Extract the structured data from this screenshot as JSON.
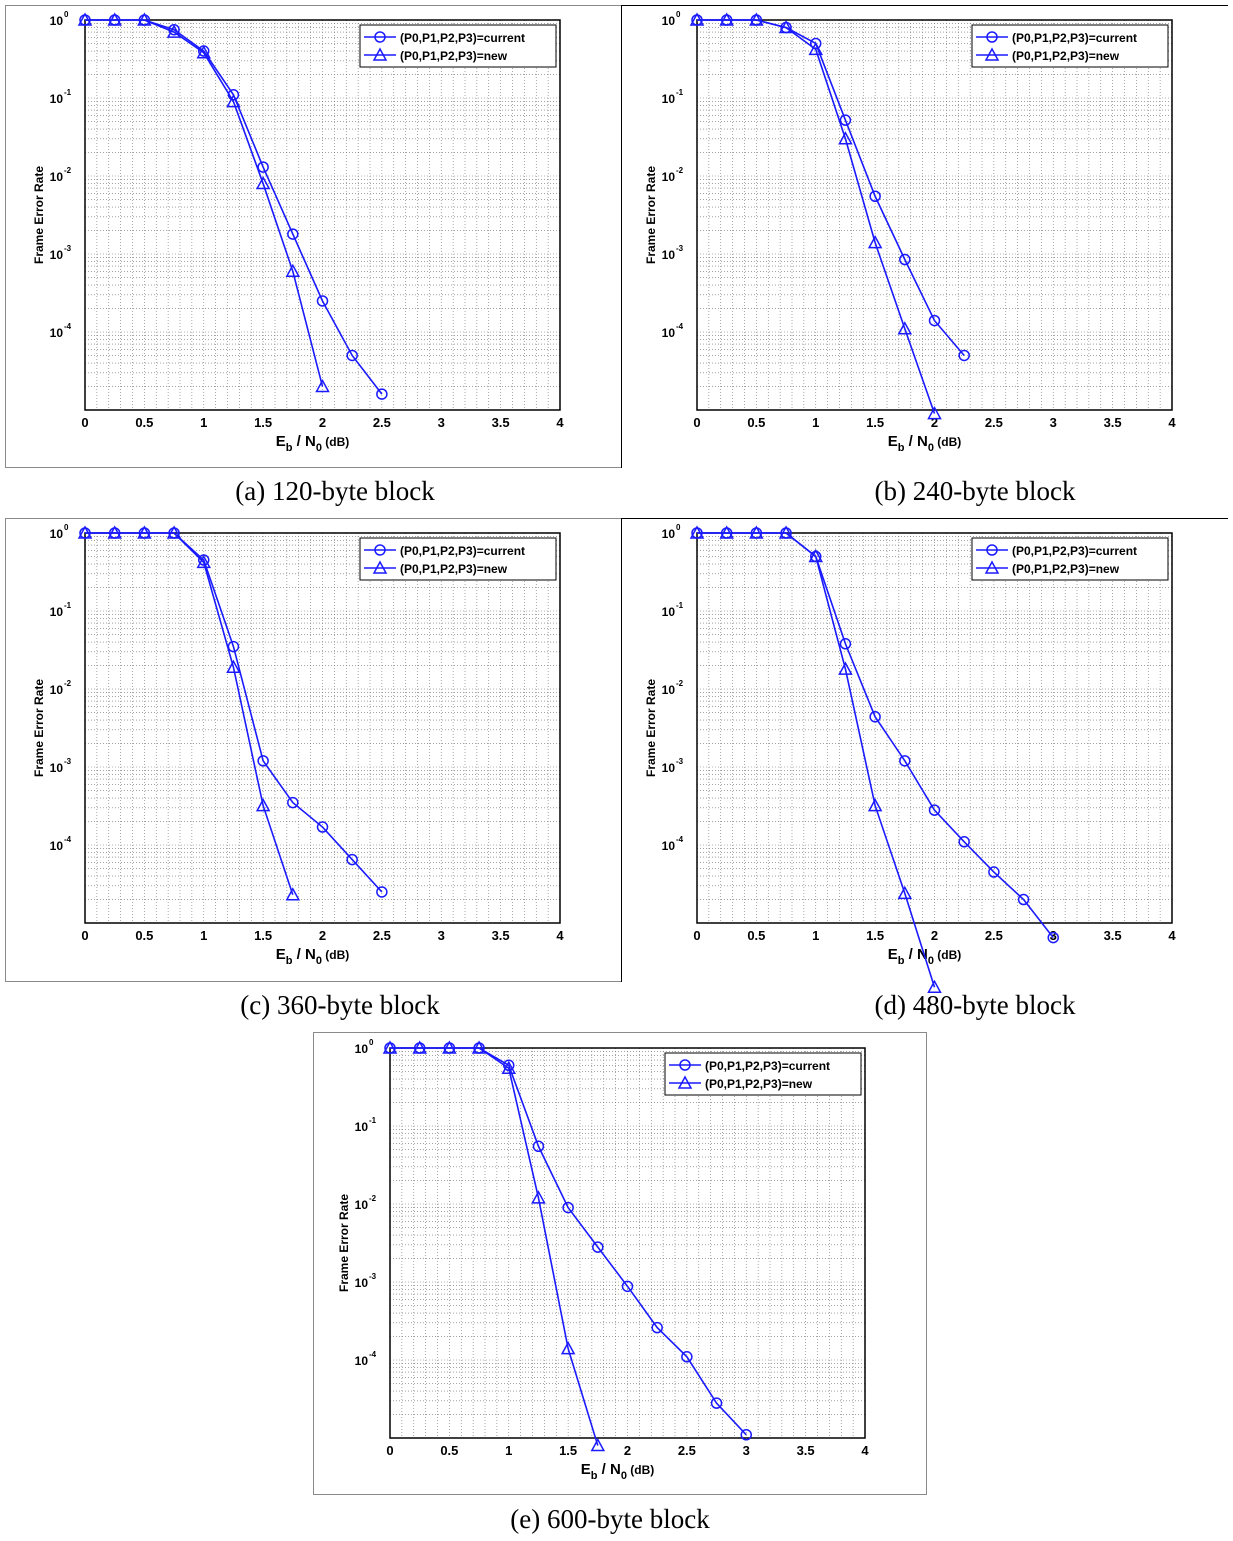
{
  "figure": {
    "series_color": "#1a1aff",
    "marker_current": "circle",
    "marker_new": "triangle"
  },
  "captions": [
    "(a) 120-byte block",
    "(b) 240-byte block",
    "(c) 360-byte block",
    "(d) 480-byte block",
    "(e) 600-byte block"
  ],
  "chart_data": [
    {
      "type": "line",
      "xlabel_main": "E",
      "xlabel_sub1": "b",
      "xlabel_mid": " / N",
      "xlabel_sub2": "0",
      "xlabel_unit": " (dB)",
      "ylabel": "Frame Error Rate",
      "xlim": [
        0,
        4
      ],
      "ylog": true,
      "ylim_exp": [
        -5,
        0
      ],
      "grid": true,
      "legend": "top-right",
      "xticks": [
        "0",
        "0.5",
        "1",
        "1.5",
        "2",
        "2.5",
        "3",
        "3.5",
        "4"
      ],
      "yticks": [
        "10",
        "10",
        "10",
        "10",
        "10"
      ],
      "ytick_exps": [
        "0",
        "-1",
        "-2",
        "-3",
        "-4"
      ],
      "series": [
        {
          "name": "(P0,P1,P2,P3)=current",
          "marker": "circle",
          "x": [
            0,
            0.25,
            0.5,
            0.75,
            1.0,
            1.25,
            1.5,
            1.75,
            2.0,
            2.25,
            2.5
          ],
          "y": [
            1,
            1,
            1,
            0.75,
            0.4,
            0.11,
            0.013,
            0.0018,
            0.00025,
            5e-05,
            1.6e-05
          ]
        },
        {
          "name": "(P0,P1,P2,P3)=new",
          "marker": "triangle",
          "x": [
            0,
            0.25,
            0.5,
            0.75,
            1.0,
            1.25,
            1.5,
            1.75,
            2.0
          ],
          "y": [
            1,
            1,
            1,
            0.7,
            0.38,
            0.09,
            0.008,
            0.0006,
            2e-05
          ]
        }
      ]
    },
    {
      "type": "line",
      "xlabel_main": "E",
      "xlabel_sub1": "b",
      "xlabel_mid": " / N",
      "xlabel_sub2": "0",
      "xlabel_unit": " (dB)",
      "ylabel": "Frame Error Rate",
      "xlim": [
        0,
        4
      ],
      "ylog": true,
      "ylim_exp": [
        -5,
        0
      ],
      "grid": true,
      "legend": "top-right",
      "xticks": [
        "0",
        "0.5",
        "1",
        "1.5",
        "2",
        "2.5",
        "3",
        "3.5",
        "4"
      ],
      "yticks": [
        "10",
        "10",
        "10",
        "10",
        "10"
      ],
      "ytick_exps": [
        "0",
        "-1",
        "-2",
        "-3",
        "-4"
      ],
      "series": [
        {
          "name": "(P0,P1,P2,P3)=current",
          "marker": "circle",
          "x": [
            0,
            0.25,
            0.5,
            0.75,
            1.0,
            1.25,
            1.5,
            1.75,
            2.0,
            2.25
          ],
          "y": [
            1,
            1,
            1,
            0.8,
            0.5,
            0.052,
            0.0055,
            0.00085,
            0.00014,
            5e-05
          ]
        },
        {
          "name": "(P0,P1,P2,P3)=new",
          "marker": "triangle",
          "x": [
            0,
            0.25,
            0.5,
            0.75,
            1.0,
            1.25,
            1.5,
            1.75,
            2.0
          ],
          "y": [
            1,
            1,
            1,
            0.8,
            0.42,
            0.03,
            0.0014,
            0.00011,
            9e-06
          ]
        }
      ]
    },
    {
      "type": "line",
      "xlabel_main": "E",
      "xlabel_sub1": "b",
      "xlabel_mid": " / N",
      "xlabel_sub2": "0",
      "xlabel_unit": " (dB)",
      "ylabel": "Frame Error Rate",
      "xlim": [
        0,
        4
      ],
      "ylog": true,
      "ylim_exp": [
        -5,
        0
      ],
      "grid": true,
      "legend": "top-right",
      "xticks": [
        "0",
        "0.5",
        "1",
        "1.5",
        "2",
        "2.5",
        "3",
        "3.5",
        "4"
      ],
      "yticks": [
        "10",
        "10",
        "10",
        "10",
        "10"
      ],
      "ytick_exps": [
        "0",
        "-1",
        "-2",
        "-3",
        "-4"
      ],
      "series": [
        {
          "name": "(P0,P1,P2,P3)=current",
          "marker": "circle",
          "x": [
            0,
            0.25,
            0.5,
            0.75,
            1.0,
            1.25,
            1.5,
            1.75,
            2.0,
            2.25,
            2.5
          ],
          "y": [
            1,
            1,
            1,
            1,
            0.45,
            0.035,
            0.0012,
            0.00035,
            0.00017,
            6.5e-05,
            2.5e-05
          ]
        },
        {
          "name": "(P0,P1,P2,P3)=new",
          "marker": "triangle",
          "x": [
            0,
            0.25,
            0.5,
            0.75,
            1.0,
            1.25,
            1.5,
            1.75
          ],
          "y": [
            1,
            1,
            1,
            1,
            0.42,
            0.019,
            0.00032,
            2.3e-05
          ]
        }
      ]
    },
    {
      "type": "line",
      "xlabel_main": "E",
      "xlabel_sub1": "b",
      "xlabel_mid": " / N",
      "xlabel_sub2": "0",
      "xlabel_unit": " (dB)",
      "ylabel": "Frame Error Rate",
      "xlim": [
        0,
        4
      ],
      "ylog": true,
      "ylim_exp": [
        -5,
        0
      ],
      "grid": true,
      "legend": "top-right",
      "xticks": [
        "0",
        "0.5",
        "1",
        "1.5",
        "2",
        "2.5",
        "3",
        "3.5",
        "4"
      ],
      "yticks": [
        "10",
        "10",
        "10",
        "10",
        "10"
      ],
      "ytick_exps": [
        "0",
        "-1",
        "-2",
        "-3",
        "-4"
      ],
      "series": [
        {
          "name": "(P0,P1,P2,P3)=current",
          "marker": "circle",
          "x": [
            0,
            0.25,
            0.5,
            0.75,
            1.0,
            1.25,
            1.5,
            1.75,
            2.0,
            2.25,
            2.5,
            2.75,
            3.0
          ],
          "y": [
            1,
            1,
            1,
            1,
            0.5,
            0.038,
            0.0044,
            0.0012,
            0.00028,
            0.00011,
            4.5e-05,
            2e-05,
            6.5e-06
          ]
        },
        {
          "name": "(P0,P1,P2,P3)=new",
          "marker": "triangle",
          "x": [
            0,
            0.25,
            0.5,
            0.75,
            1.0,
            1.25,
            1.5,
            1.75,
            2.0
          ],
          "y": [
            1,
            1,
            1,
            1,
            0.5,
            0.018,
            0.00032,
            2.4e-05,
            1.5e-06
          ]
        }
      ]
    },
    {
      "type": "line",
      "xlabel_main": "E",
      "xlabel_sub1": "b",
      "xlabel_mid": " / N",
      "xlabel_sub2": "0",
      "xlabel_unit": " (dB)",
      "ylabel": "Frame Error Rate",
      "xlim": [
        0,
        4
      ],
      "ylog": true,
      "ylim_exp": [
        -5,
        0
      ],
      "grid": true,
      "legend": "top-right",
      "xticks": [
        "0",
        "0.5",
        "1",
        "1.5",
        "2",
        "2.5",
        "3",
        "3.5",
        "4"
      ],
      "yticks": [
        "10",
        "10",
        "10",
        "10",
        "10"
      ],
      "ytick_exps": [
        "0",
        "-1",
        "-2",
        "-3",
        "-4"
      ],
      "series": [
        {
          "name": "(P0,P1,P2,P3)=current",
          "marker": "circle",
          "x": [
            0,
            0.25,
            0.5,
            0.75,
            1.0,
            1.25,
            1.5,
            1.75,
            2.0,
            2.25,
            2.5,
            2.75,
            3.0
          ],
          "y": [
            1,
            1,
            1,
            1,
            0.6,
            0.055,
            0.009,
            0.0028,
            0.00088,
            0.00026,
            0.00011,
            2.8e-05,
            1.1e-05
          ]
        },
        {
          "name": "(P0,P1,P2,P3)=new",
          "marker": "triangle",
          "x": [
            0,
            0.25,
            0.5,
            0.75,
            1.0,
            1.25,
            1.5,
            1.75
          ],
          "y": [
            1,
            1,
            1,
            1,
            0.55,
            0.012,
            0.00014,
            8e-06
          ]
        }
      ]
    }
  ]
}
